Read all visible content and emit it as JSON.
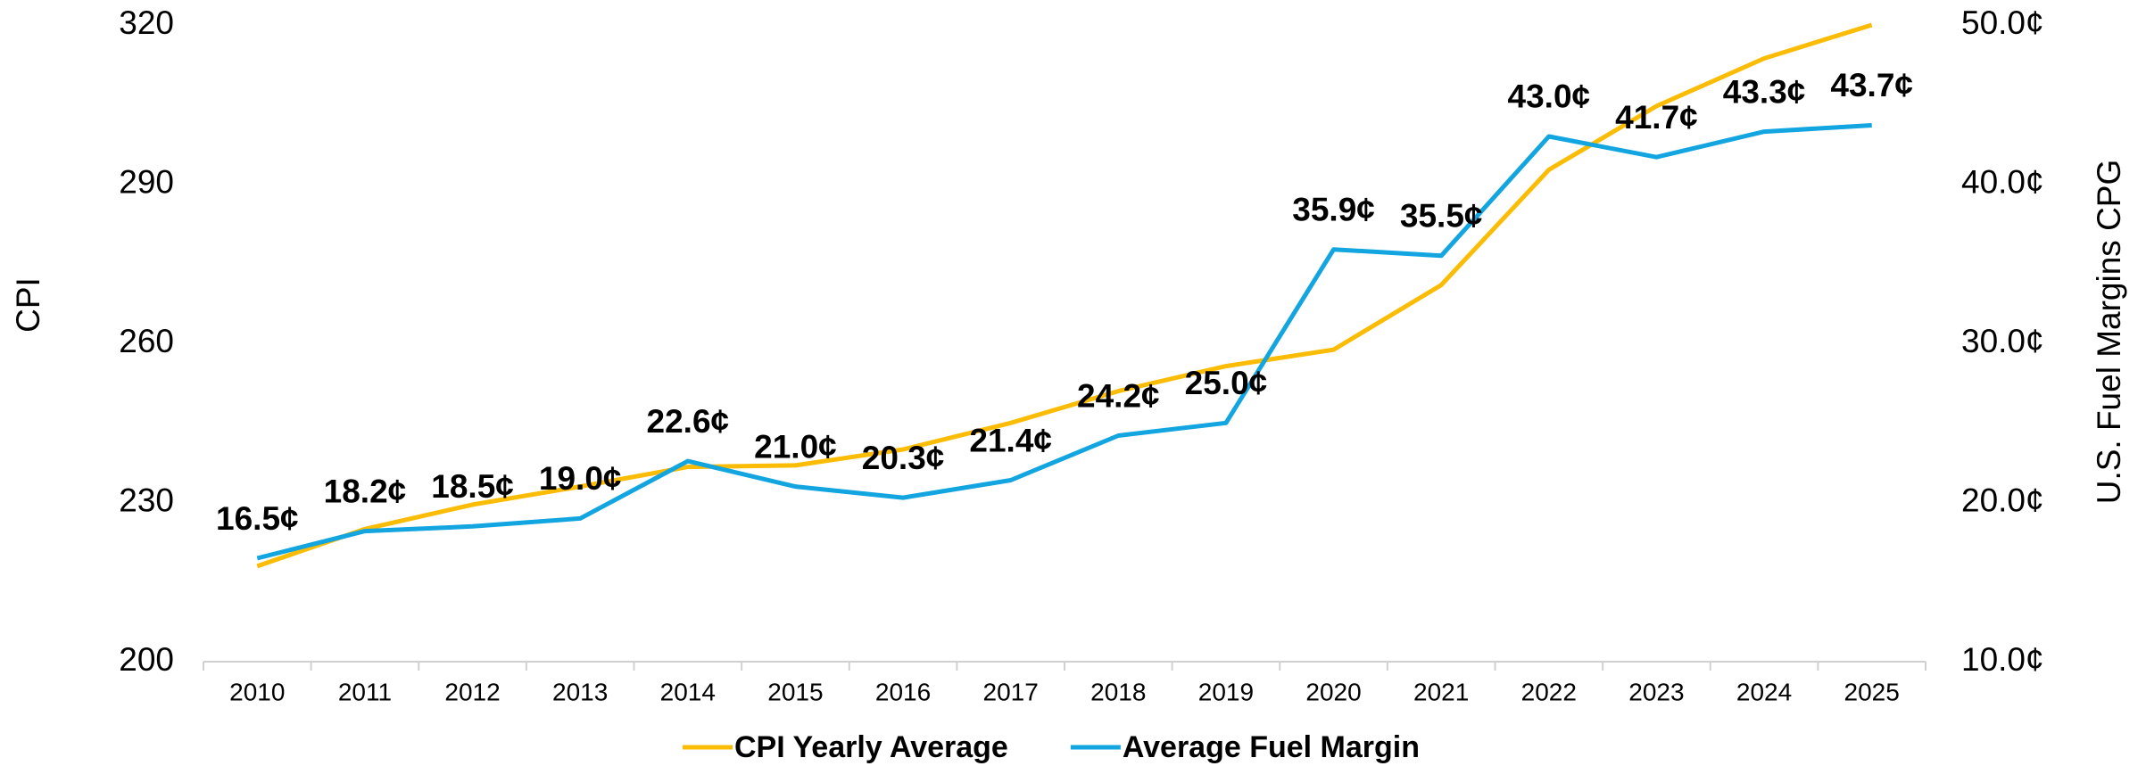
{
  "chart_data": {
    "type": "line",
    "y_label": "CPI",
    "y2_label": "U.S. Fuel Margins CPG",
    "categories": [
      "2010",
      "2011",
      "2012",
      "2013",
      "2014",
      "2015",
      "2016",
      "2017",
      "2018",
      "2019",
      "2020",
      "2021",
      "2022",
      "2023",
      "2024",
      "2025"
    ],
    "series": [
      {
        "name": "CPI Yearly Average",
        "color": "#fbbc05",
        "axis": "y",
        "values": [
          218,
          225,
          229.6,
          233,
          236.7,
          237,
          240,
          245,
          251,
          255.7,
          258.8,
          271,
          292.7,
          304.7,
          313.7,
          320
        ]
      },
      {
        "name": "Average Fuel Margin",
        "color": "#12a5e0",
        "axis": "y2",
        "values": [
          16.5,
          18.2,
          18.5,
          19.0,
          22.6,
          21.0,
          20.3,
          21.4,
          24.2,
          25.0,
          35.9,
          35.5,
          43.0,
          41.7,
          43.3,
          43.7
        ],
        "value_labels": [
          "16.5¢",
          "18.2¢",
          "18.5¢",
          "19.0¢",
          "22.6¢",
          "21.0¢",
          "20.3¢",
          "21.4¢",
          "24.2¢",
          "25.0¢",
          "35.9¢",
          "35.5¢",
          "43.0¢",
          "41.7¢",
          "43.3¢",
          "43.7¢"
        ]
      }
    ],
    "ylim": [
      200,
      320
    ],
    "yticks": [
      200,
      230,
      260,
      290,
      320
    ],
    "y2lim": [
      10,
      50
    ],
    "y2ticks": [
      {
        "value": 10,
        "label": "10.0¢"
      },
      {
        "value": 20,
        "label": "20.0¢"
      },
      {
        "value": 30,
        "label": "30.0¢"
      },
      {
        "value": 40,
        "label": "40.0¢"
      },
      {
        "value": 50,
        "label": "50.0¢"
      }
    ],
    "legend": "bottom"
  }
}
